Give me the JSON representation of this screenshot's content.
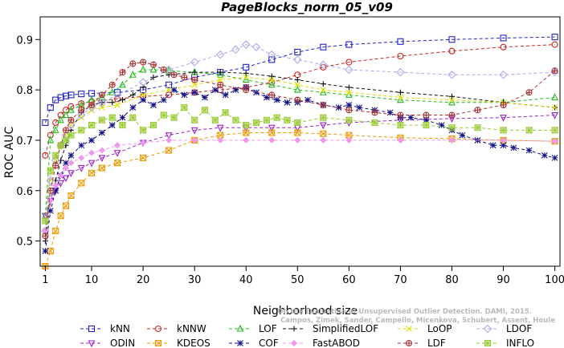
{
  "chart_data": {
    "type": "line",
    "title": "PageBlocks_norm_05_v09",
    "xlabel": "Neighborhood size",
    "ylabel": "ROC AUC",
    "xlim": [
      0,
      101
    ],
    "ylim": [
      0.45,
      0.945
    ],
    "xticks": [
      1,
      10,
      20,
      30,
      40,
      50,
      60,
      70,
      80,
      90,
      100
    ],
    "yticks": [
      0.5,
      0.6,
      0.7,
      0.8,
      0.9
    ],
    "grid": false,
    "legend_position": "bottom",
    "watermark": [
      "Campos, Zimek, Sander, Campello, Micenkova, Schubert, Assent, Houle",
      "On the Evaluation of Unsupervised Outlier Detection. DAMI, 2015."
    ],
    "series": [
      {
        "name": "kNN",
        "color": "#2222cc",
        "marker": "square",
        "x": [
          1,
          2,
          3,
          4,
          5,
          6,
          8,
          10,
          15,
          20,
          25,
          30,
          35,
          40,
          45,
          50,
          55,
          60,
          70,
          80,
          90,
          100
        ],
        "y": [
          0.735,
          0.765,
          0.78,
          0.785,
          0.788,
          0.79,
          0.792,
          0.793,
          0.795,
          0.8,
          0.81,
          0.825,
          0.835,
          0.845,
          0.86,
          0.875,
          0.885,
          0.89,
          0.896,
          0.9,
          0.903,
          0.905
        ]
      },
      {
        "name": "kNNW",
        "color": "#cc2222",
        "marker": "circle",
        "x": [
          1,
          2,
          3,
          4,
          5,
          6,
          8,
          10,
          15,
          20,
          25,
          30,
          35,
          40,
          45,
          50,
          55,
          60,
          70,
          80,
          90,
          100
        ],
        "y": [
          0.67,
          0.71,
          0.735,
          0.75,
          0.76,
          0.767,
          0.773,
          0.777,
          0.782,
          0.787,
          0.79,
          0.795,
          0.8,
          0.805,
          0.815,
          0.83,
          0.845,
          0.855,
          0.867,
          0.877,
          0.885,
          0.89
        ]
      },
      {
        "name": "LOF",
        "color": "#22bb22",
        "marker": "triangle-up",
        "x": [
          1,
          2,
          3,
          4,
          5,
          6,
          8,
          10,
          12,
          14,
          16,
          18,
          20,
          22,
          25,
          30,
          35,
          40,
          45,
          50,
          55,
          60,
          70,
          80,
          90,
          100
        ],
        "y": [
          0.55,
          0.7,
          0.72,
          0.74,
          0.75,
          0.76,
          0.77,
          0.78,
          0.785,
          0.795,
          0.81,
          0.83,
          0.84,
          0.84,
          0.838,
          0.835,
          0.83,
          0.82,
          0.81,
          0.8,
          0.795,
          0.79,
          0.78,
          0.775,
          0.775,
          0.785
        ]
      },
      {
        "name": "SimplifiedLOF",
        "color": "#111111",
        "marker": "plus",
        "x": [
          1,
          2,
          3,
          4,
          5,
          6,
          8,
          10,
          12,
          14,
          16,
          18,
          20,
          22,
          25,
          30,
          35,
          40,
          45,
          50,
          55,
          60,
          70,
          80,
          90,
          100
        ],
        "y": [
          0.5,
          0.58,
          0.62,
          0.66,
          0.69,
          0.72,
          0.755,
          0.77,
          0.775,
          0.775,
          0.78,
          0.79,
          0.805,
          0.825,
          0.83,
          0.835,
          0.835,
          0.833,
          0.827,
          0.82,
          0.812,
          0.805,
          0.795,
          0.787,
          0.775,
          0.765
        ]
      },
      {
        "name": "LoOP",
        "color": "#dddd00",
        "marker": "x",
        "x": [
          1,
          2,
          3,
          4,
          5,
          6,
          8,
          10,
          12,
          15,
          20,
          25,
          30,
          35,
          40,
          45,
          50,
          55,
          60,
          70,
          80,
          90,
          100
        ],
        "y": [
          0.52,
          0.62,
          0.66,
          0.69,
          0.71,
          0.73,
          0.745,
          0.76,
          0.765,
          0.77,
          0.79,
          0.8,
          0.81,
          0.82,
          0.825,
          0.82,
          0.81,
          0.8,
          0.795,
          0.785,
          0.78,
          0.775,
          0.765
        ]
      },
      {
        "name": "LDOF",
        "color": "#aaaaee",
        "marker": "diamond",
        "x": [
          1,
          2,
          3,
          4,
          5,
          6,
          8,
          10,
          12,
          15,
          20,
          25,
          30,
          35,
          38,
          40,
          42,
          45,
          50,
          55,
          60,
          70,
          80,
          90,
          100
        ],
        "y": [
          0.52,
          0.62,
          0.66,
          0.69,
          0.71,
          0.73,
          0.75,
          0.765,
          0.775,
          0.79,
          0.815,
          0.84,
          0.855,
          0.87,
          0.88,
          0.89,
          0.885,
          0.87,
          0.86,
          0.85,
          0.84,
          0.835,
          0.83,
          0.83,
          0.835
        ]
      },
      {
        "name": "ODIN",
        "color": "#9922cc",
        "marker": "triangle-down",
        "x": [
          1,
          2,
          3,
          4,
          5,
          6,
          8,
          10,
          12,
          15,
          20,
          25,
          30,
          35,
          40,
          45,
          50,
          55,
          60,
          70,
          80,
          90,
          100
        ],
        "y": [
          0.55,
          0.58,
          0.6,
          0.615,
          0.625,
          0.635,
          0.645,
          0.655,
          0.665,
          0.675,
          0.695,
          0.71,
          0.72,
          0.725,
          0.725,
          0.725,
          0.725,
          0.73,
          0.735,
          0.74,
          0.743,
          0.745,
          0.75
        ]
      },
      {
        "name": "KDEOS",
        "color": "#ee9900",
        "marker": "square-x",
        "x": [
          1,
          2,
          3,
          4,
          5,
          6,
          8,
          10,
          12,
          15,
          20,
          25,
          30,
          35,
          40,
          45,
          50,
          55,
          60,
          70,
          80,
          90,
          100
        ],
        "y": [
          0.45,
          0.48,
          0.52,
          0.55,
          0.57,
          0.59,
          0.615,
          0.635,
          0.645,
          0.655,
          0.665,
          0.68,
          0.7,
          0.71,
          0.715,
          0.715,
          0.715,
          0.713,
          0.71,
          0.705,
          0.703,
          0.7,
          0.698
        ]
      },
      {
        "name": "COF",
        "color": "#111188",
        "marker": "asterisk",
        "x": [
          1,
          2,
          3,
          4,
          5,
          6,
          8,
          10,
          12,
          14,
          16,
          18,
          20,
          22,
          24,
          26,
          28,
          30,
          32,
          34,
          36,
          38,
          40,
          42,
          44,
          46,
          48,
          50,
          52,
          55,
          58,
          60,
          62,
          65,
          68,
          70,
          72,
          75,
          78,
          80,
          82,
          85,
          88,
          90,
          92,
          95,
          98,
          100
        ],
        "y": [
          0.48,
          0.56,
          0.6,
          0.63,
          0.655,
          0.67,
          0.69,
          0.7,
          0.715,
          0.73,
          0.745,
          0.765,
          0.78,
          0.77,
          0.78,
          0.8,
          0.79,
          0.795,
          0.785,
          0.8,
          0.79,
          0.8,
          0.805,
          0.795,
          0.785,
          0.78,
          0.775,
          0.775,
          0.78,
          0.77,
          0.765,
          0.77,
          0.765,
          0.76,
          0.755,
          0.745,
          0.745,
          0.74,
          0.73,
          0.72,
          0.71,
          0.7,
          0.69,
          0.69,
          0.685,
          0.68,
          0.67,
          0.665
        ]
      },
      {
        "name": "FastABOD",
        "color": "#ee99ee",
        "marker": "diamond-filled",
        "x": [
          1,
          2,
          3,
          4,
          5,
          6,
          8,
          10,
          12,
          15,
          20,
          25,
          30,
          35,
          40,
          45,
          50,
          55,
          60,
          70,
          80,
          90,
          100
        ],
        "y": [
          0.52,
          0.58,
          0.61,
          0.63,
          0.645,
          0.655,
          0.665,
          0.675,
          0.68,
          0.69,
          0.695,
          0.7,
          0.7,
          0.7,
          0.7,
          0.7,
          0.7,
          0.7,
          0.7,
          0.7,
          0.7,
          0.7,
          0.698
        ]
      },
      {
        "name": "LDF",
        "color": "#aa3333",
        "marker": "circle-plus",
        "x": [
          1,
          2,
          3,
          4,
          5,
          6,
          8,
          10,
          12,
          14,
          16,
          18,
          20,
          22,
          24,
          26,
          28,
          30,
          35,
          40,
          45,
          50,
          55,
          60,
          65,
          70,
          75,
          80,
          85,
          90,
          95,
          100
        ],
        "y": [
          0.51,
          0.6,
          0.65,
          0.69,
          0.72,
          0.74,
          0.76,
          0.77,
          0.79,
          0.81,
          0.835,
          0.852,
          0.855,
          0.85,
          0.84,
          0.83,
          0.825,
          0.82,
          0.81,
          0.8,
          0.79,
          0.78,
          0.77,
          0.76,
          0.755,
          0.75,
          0.75,
          0.75,
          0.76,
          0.77,
          0.795,
          0.838
        ]
      },
      {
        "name": "INFLO",
        "color": "#99cc33",
        "marker": "star-box",
        "x": [
          1,
          2,
          3,
          4,
          5,
          6,
          8,
          10,
          12,
          14,
          16,
          18,
          20,
          22,
          24,
          26,
          28,
          30,
          32,
          34,
          36,
          38,
          40,
          42,
          44,
          46,
          48,
          50,
          55,
          60,
          65,
          70,
          75,
          80,
          85,
          90,
          95,
          100
        ],
        "y": [
          0.54,
          0.64,
          0.67,
          0.69,
          0.7,
          0.71,
          0.72,
          0.73,
          0.74,
          0.745,
          0.73,
          0.745,
          0.72,
          0.73,
          0.75,
          0.745,
          0.765,
          0.74,
          0.76,
          0.74,
          0.755,
          0.74,
          0.73,
          0.735,
          0.74,
          0.745,
          0.74,
          0.735,
          0.745,
          0.74,
          0.735,
          0.73,
          0.73,
          0.725,
          0.725,
          0.72,
          0.72,
          0.72
        ]
      }
    ]
  }
}
